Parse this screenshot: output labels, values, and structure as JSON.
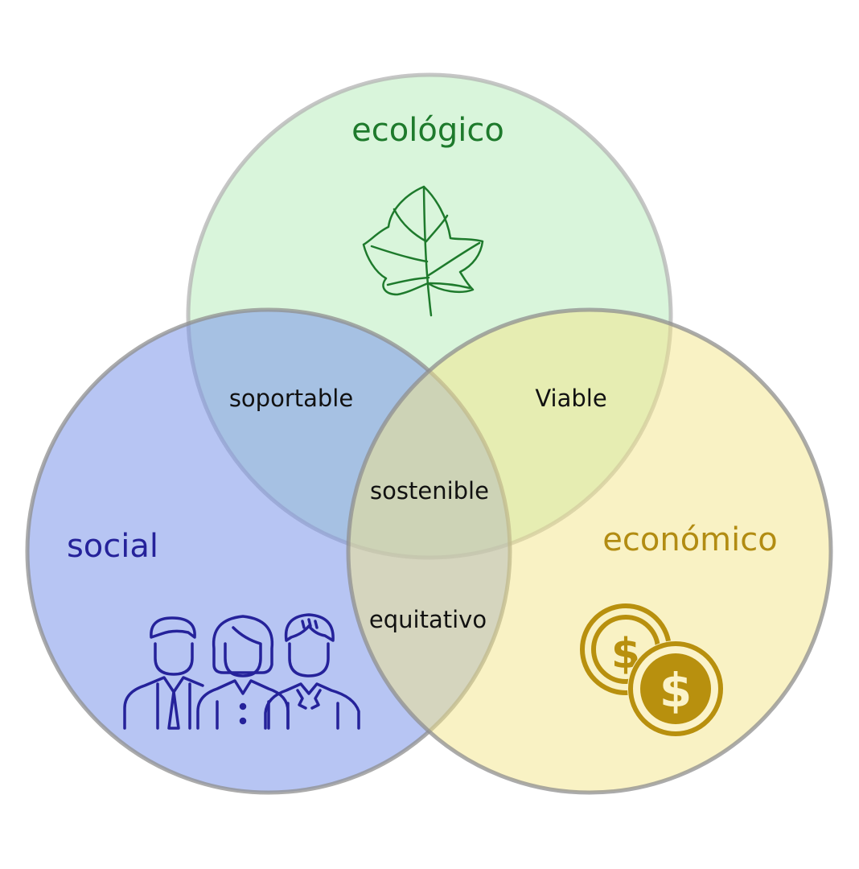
{
  "diagram": {
    "sets": {
      "ecological": {
        "title": "ecológico",
        "fill": "#b4ebb8",
        "title_color": "#1e7a2c",
        "icon": "leaf-icon"
      },
      "social": {
        "title": "social",
        "fill": "#7b95ea",
        "title_color": "#25229a",
        "icon": "people-group-icon"
      },
      "economic": {
        "title": "económico",
        "fill": "#f4e68a",
        "title_color": "#b28c12",
        "icon": "dollar-coins-icon"
      }
    },
    "outline_color": "#b3b3b3",
    "intersections": {
      "ecological_social": "soportable",
      "ecological_economic": "Viable",
      "social_economic": "equitativo",
      "all_three": "sostenible"
    }
  }
}
